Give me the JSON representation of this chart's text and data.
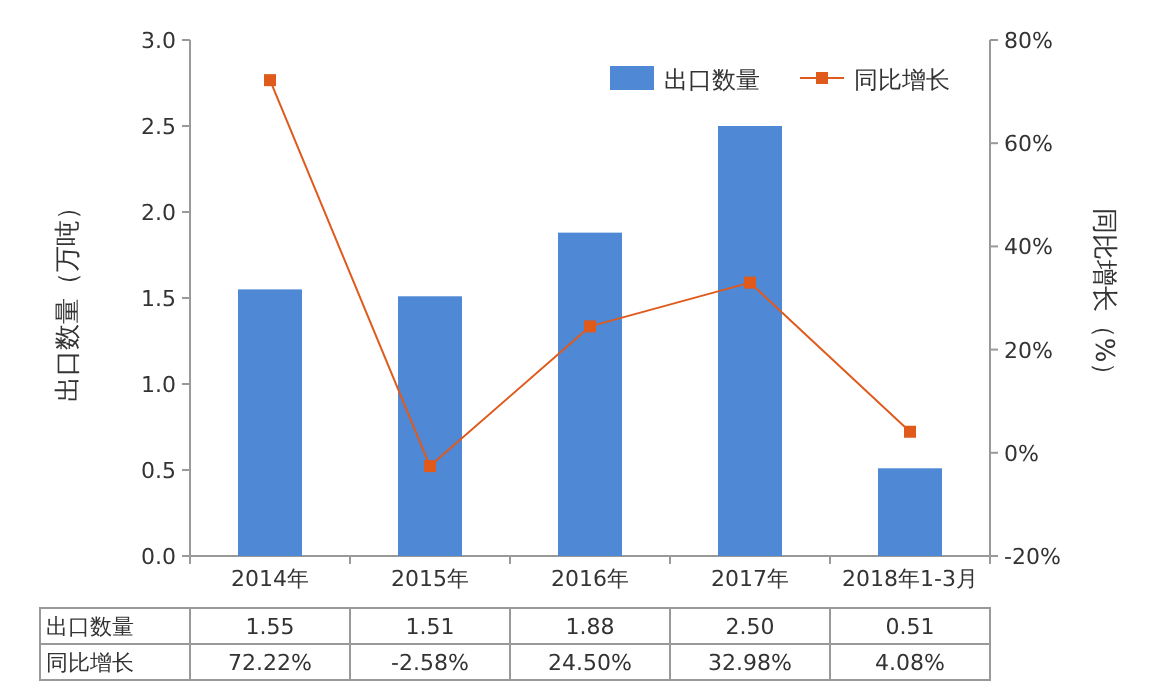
{
  "chart_data": {
    "type": "bar",
    "ylabel": "出口数量（万吨）",
    "y2label": "同比增长（%）",
    "categories": [
      "2014年",
      "2015年",
      "2016年",
      "2017年",
      "2018年1-3月"
    ],
    "series": [
      {
        "name": "出口数量",
        "color": "#4f88d4",
        "values": [
          1.55,
          1.51,
          1.88,
          2.5,
          0.51
        ],
        "value_labels": [
          "1.55",
          "1.51",
          "1.88",
          "2.50",
          "0.51"
        ]
      },
      {
        "name": "同比增长",
        "type": "line",
        "axis": "y2",
        "color": "#e05a1c",
        "marker": "square",
        "values": [
          72.22,
          -2.58,
          24.5,
          32.98,
          4.08
        ],
        "value_labels": [
          "72.22%",
          "-2.58%",
          "24.50%",
          "32.98%",
          "4.08%"
        ]
      }
    ],
    "ylim": [
      0,
      3
    ],
    "yticks": [
      {
        "value": 0,
        "label": "0.0"
      },
      {
        "value": 0.5,
        "label": "0.5"
      },
      {
        "value": 1,
        "label": "1.0"
      },
      {
        "value": 1.5,
        "label": "1.5"
      },
      {
        "value": 2,
        "label": "2.0"
      },
      {
        "value": 2.5,
        "label": "2.5"
      },
      {
        "value": 3,
        "label": "3.0"
      }
    ],
    "y2lim": [
      -20,
      80
    ],
    "y2ticks": [
      {
        "value": -20,
        "label": "-20%"
      },
      {
        "value": 0,
        "label": "0%"
      },
      {
        "value": 20,
        "label": "20%"
      },
      {
        "value": 40,
        "label": "40%"
      },
      {
        "value": 60,
        "label": "60%"
      },
      {
        "value": 80,
        "label": "80%"
      }
    ],
    "legend": "top right"
  }
}
